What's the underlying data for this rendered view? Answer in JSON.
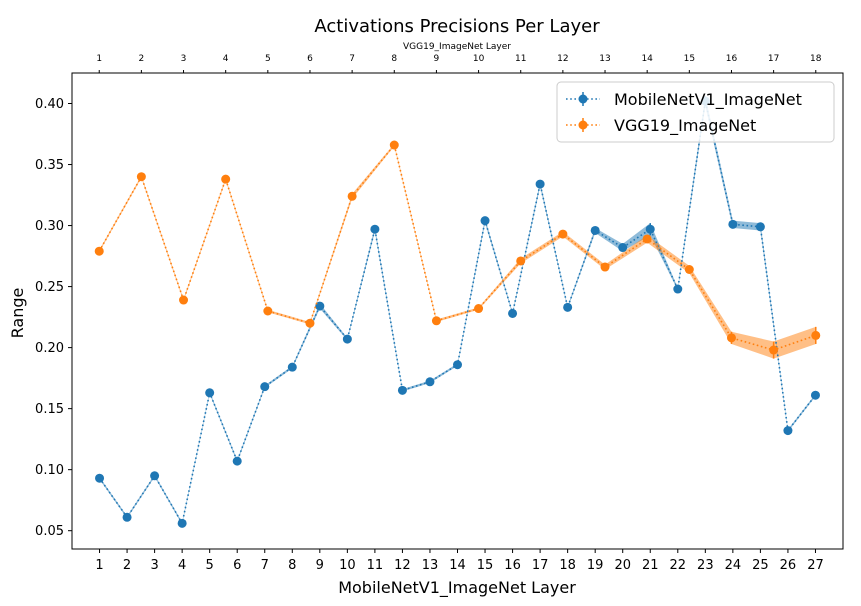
{
  "chart_data": {
    "type": "line",
    "title": "Activations Precisions Per Layer",
    "xlabel": "MobileNetV1_ImageNet Layer",
    "ylabel": "Range",
    "top_xlabel": "VGG19_ImageNet Layer",
    "ylim": [
      0.035,
      0.425
    ],
    "yticks": [
      "0.05",
      "0.10",
      "0.15",
      "0.20",
      "0.25",
      "0.30",
      "0.35",
      "0.40"
    ],
    "bottom_xlim": [
      0,
      28
    ],
    "bottom_xticks": [
      "1",
      "2",
      "3",
      "4",
      "5",
      "6",
      "7",
      "8",
      "9",
      "10",
      "11",
      "12",
      "13",
      "14",
      "15",
      "16",
      "17",
      "18",
      "19",
      "20",
      "21",
      "22",
      "23",
      "24",
      "25",
      "26",
      "27"
    ],
    "top_xlim": [
      0.354,
      18.646
    ],
    "top_xticks": [
      "1",
      "2",
      "3",
      "4",
      "5",
      "6",
      "7",
      "8",
      "9",
      "10",
      "11",
      "12",
      "13",
      "14",
      "15",
      "16",
      "17",
      "18"
    ],
    "legend_position": "top-right",
    "series": [
      {
        "name": "MobileNetV1_ImageNet",
        "color": "#1f77b4",
        "axis": "bottom",
        "x": [
          1,
          2,
          3,
          4,
          5,
          6,
          7,
          8,
          9,
          10,
          11,
          12,
          13,
          14,
          15,
          16,
          17,
          18,
          19,
          20,
          21,
          22,
          23,
          24,
          25,
          26,
          27
        ],
        "values": [
          0.093,
          0.061,
          0.095,
          0.056,
          0.163,
          0.107,
          0.168,
          0.184,
          0.234,
          0.207,
          0.297,
          0.165,
          0.172,
          0.186,
          0.304,
          0.228,
          0.334,
          0.233,
          0.296,
          0.282,
          0.297,
          0.248,
          0.402,
          0.301,
          0.299,
          0.132,
          0.161
        ],
        "error": [
          0.001,
          0.001,
          0.001,
          0.001,
          0.001,
          0.001,
          0.001,
          0.001,
          0.002,
          0.001,
          0.002,
          0.001,
          0.001,
          0.001,
          0.002,
          0.001,
          0.002,
          0.001,
          0.002,
          0.003,
          0.005,
          0.001,
          0.004,
          0.003,
          0.003,
          0.001,
          0.001
        ]
      },
      {
        "name": "VGG19_ImageNet",
        "color": "#ff7f0e",
        "axis": "top",
        "x": [
          1,
          2,
          3,
          4,
          5,
          6,
          7,
          8,
          9,
          10,
          11,
          12,
          13,
          14,
          15,
          16,
          17,
          18
        ],
        "values": [
          0.279,
          0.34,
          0.239,
          0.338,
          0.23,
          0.22,
          0.324,
          0.366,
          0.222,
          0.232,
          0.271,
          0.293,
          0.266,
          0.289,
          0.264,
          0.208,
          0.198,
          0.21
        ],
        "error": [
          0.001,
          0.001,
          0.001,
          0.001,
          0.001,
          0.001,
          0.002,
          0.001,
          0.001,
          0.001,
          0.002,
          0.002,
          0.002,
          0.003,
          0.003,
          0.005,
          0.007,
          0.007
        ]
      }
    ]
  }
}
